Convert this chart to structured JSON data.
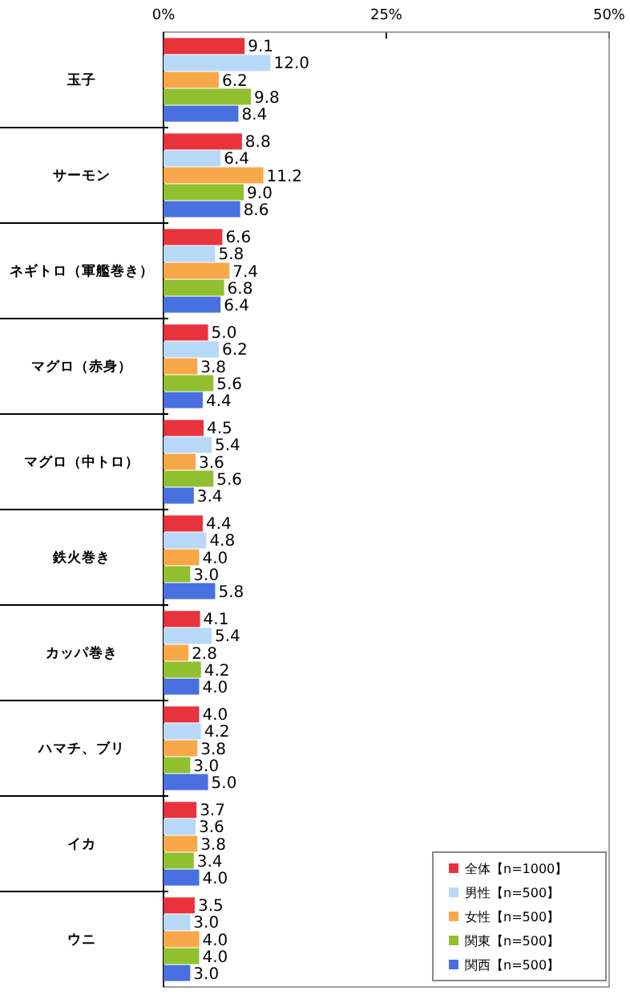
{
  "chart_data": {
    "type": "bar",
    "orientation": "horizontal",
    "categories": [
      "玉子",
      "サーモン",
      "ネギトロ（軍艦巻き）",
      "マグロ（赤身）",
      "マグロ（中トロ）",
      "鉄火巻き",
      "カッパ巻き",
      "ハマチ、ブリ",
      "イカ",
      "ウニ"
    ],
    "series": [
      {
        "name": "全体【n=1000】",
        "color": "#e8323c",
        "values": [
          9.1,
          8.8,
          6.6,
          5.0,
          4.5,
          4.4,
          4.1,
          4.0,
          3.7,
          3.5
        ],
        "value_labels": [
          "9.1",
          "8.8",
          "6.6",
          "5.0",
          "4.5",
          "4.4",
          "4.1",
          "4.0",
          "3.7",
          "3.5"
        ]
      },
      {
        "name": "男性【n=500】",
        "color": "#b8d8f8",
        "values": [
          12.0,
          6.4,
          5.8,
          6.2,
          5.4,
          4.8,
          5.4,
          4.2,
          3.6,
          3.0
        ],
        "value_labels": [
          "12.0",
          "6.4",
          "5.8",
          "6.2",
          "5.4",
          "4.8",
          "5.4",
          "4.2",
          "3.6",
          "3.0"
        ]
      },
      {
        "name": "女性【n=500】",
        "color": "#f8a848",
        "values": [
          6.2,
          11.2,
          7.4,
          3.8,
          3.6,
          4.0,
          2.8,
          3.8,
          3.8,
          4.0
        ],
        "value_labels": [
          "6.2",
          "11.2",
          "7.4",
          "3.8",
          "3.6",
          "4.0",
          "2.8",
          "3.8",
          "3.8",
          "4.0"
        ]
      },
      {
        "name": "関東【n=500】",
        "color": "#90c030",
        "values": [
          9.8,
          9.0,
          6.8,
          5.6,
          5.6,
          3.0,
          4.2,
          3.0,
          3.4,
          4.0
        ],
        "value_labels": [
          "9.8",
          "9.0",
          "6.8",
          "5.6",
          "5.6",
          "3.0",
          "4.2",
          "3.0",
          "3.4",
          "4.0"
        ]
      },
      {
        "name": "関西【n=500】",
        "color": "#4870e0",
        "values": [
          8.4,
          8.6,
          6.4,
          4.4,
          3.4,
          5.8,
          4.0,
          5.0,
          4.0,
          3.0
        ],
        "value_labels": [
          "8.4",
          "8.6",
          "6.4",
          "4.4",
          "3.4",
          "5.8",
          "4.0",
          "5.0",
          "4.0",
          "3.0"
        ]
      }
    ],
    "xlim": [
      0,
      50
    ],
    "xticks": [
      {
        "value": 0,
        "label": "0%"
      },
      {
        "value": 25,
        "label": "25%"
      },
      {
        "value": 50,
        "label": "50%"
      }
    ],
    "legend": "bottom right",
    "grid": false
  }
}
